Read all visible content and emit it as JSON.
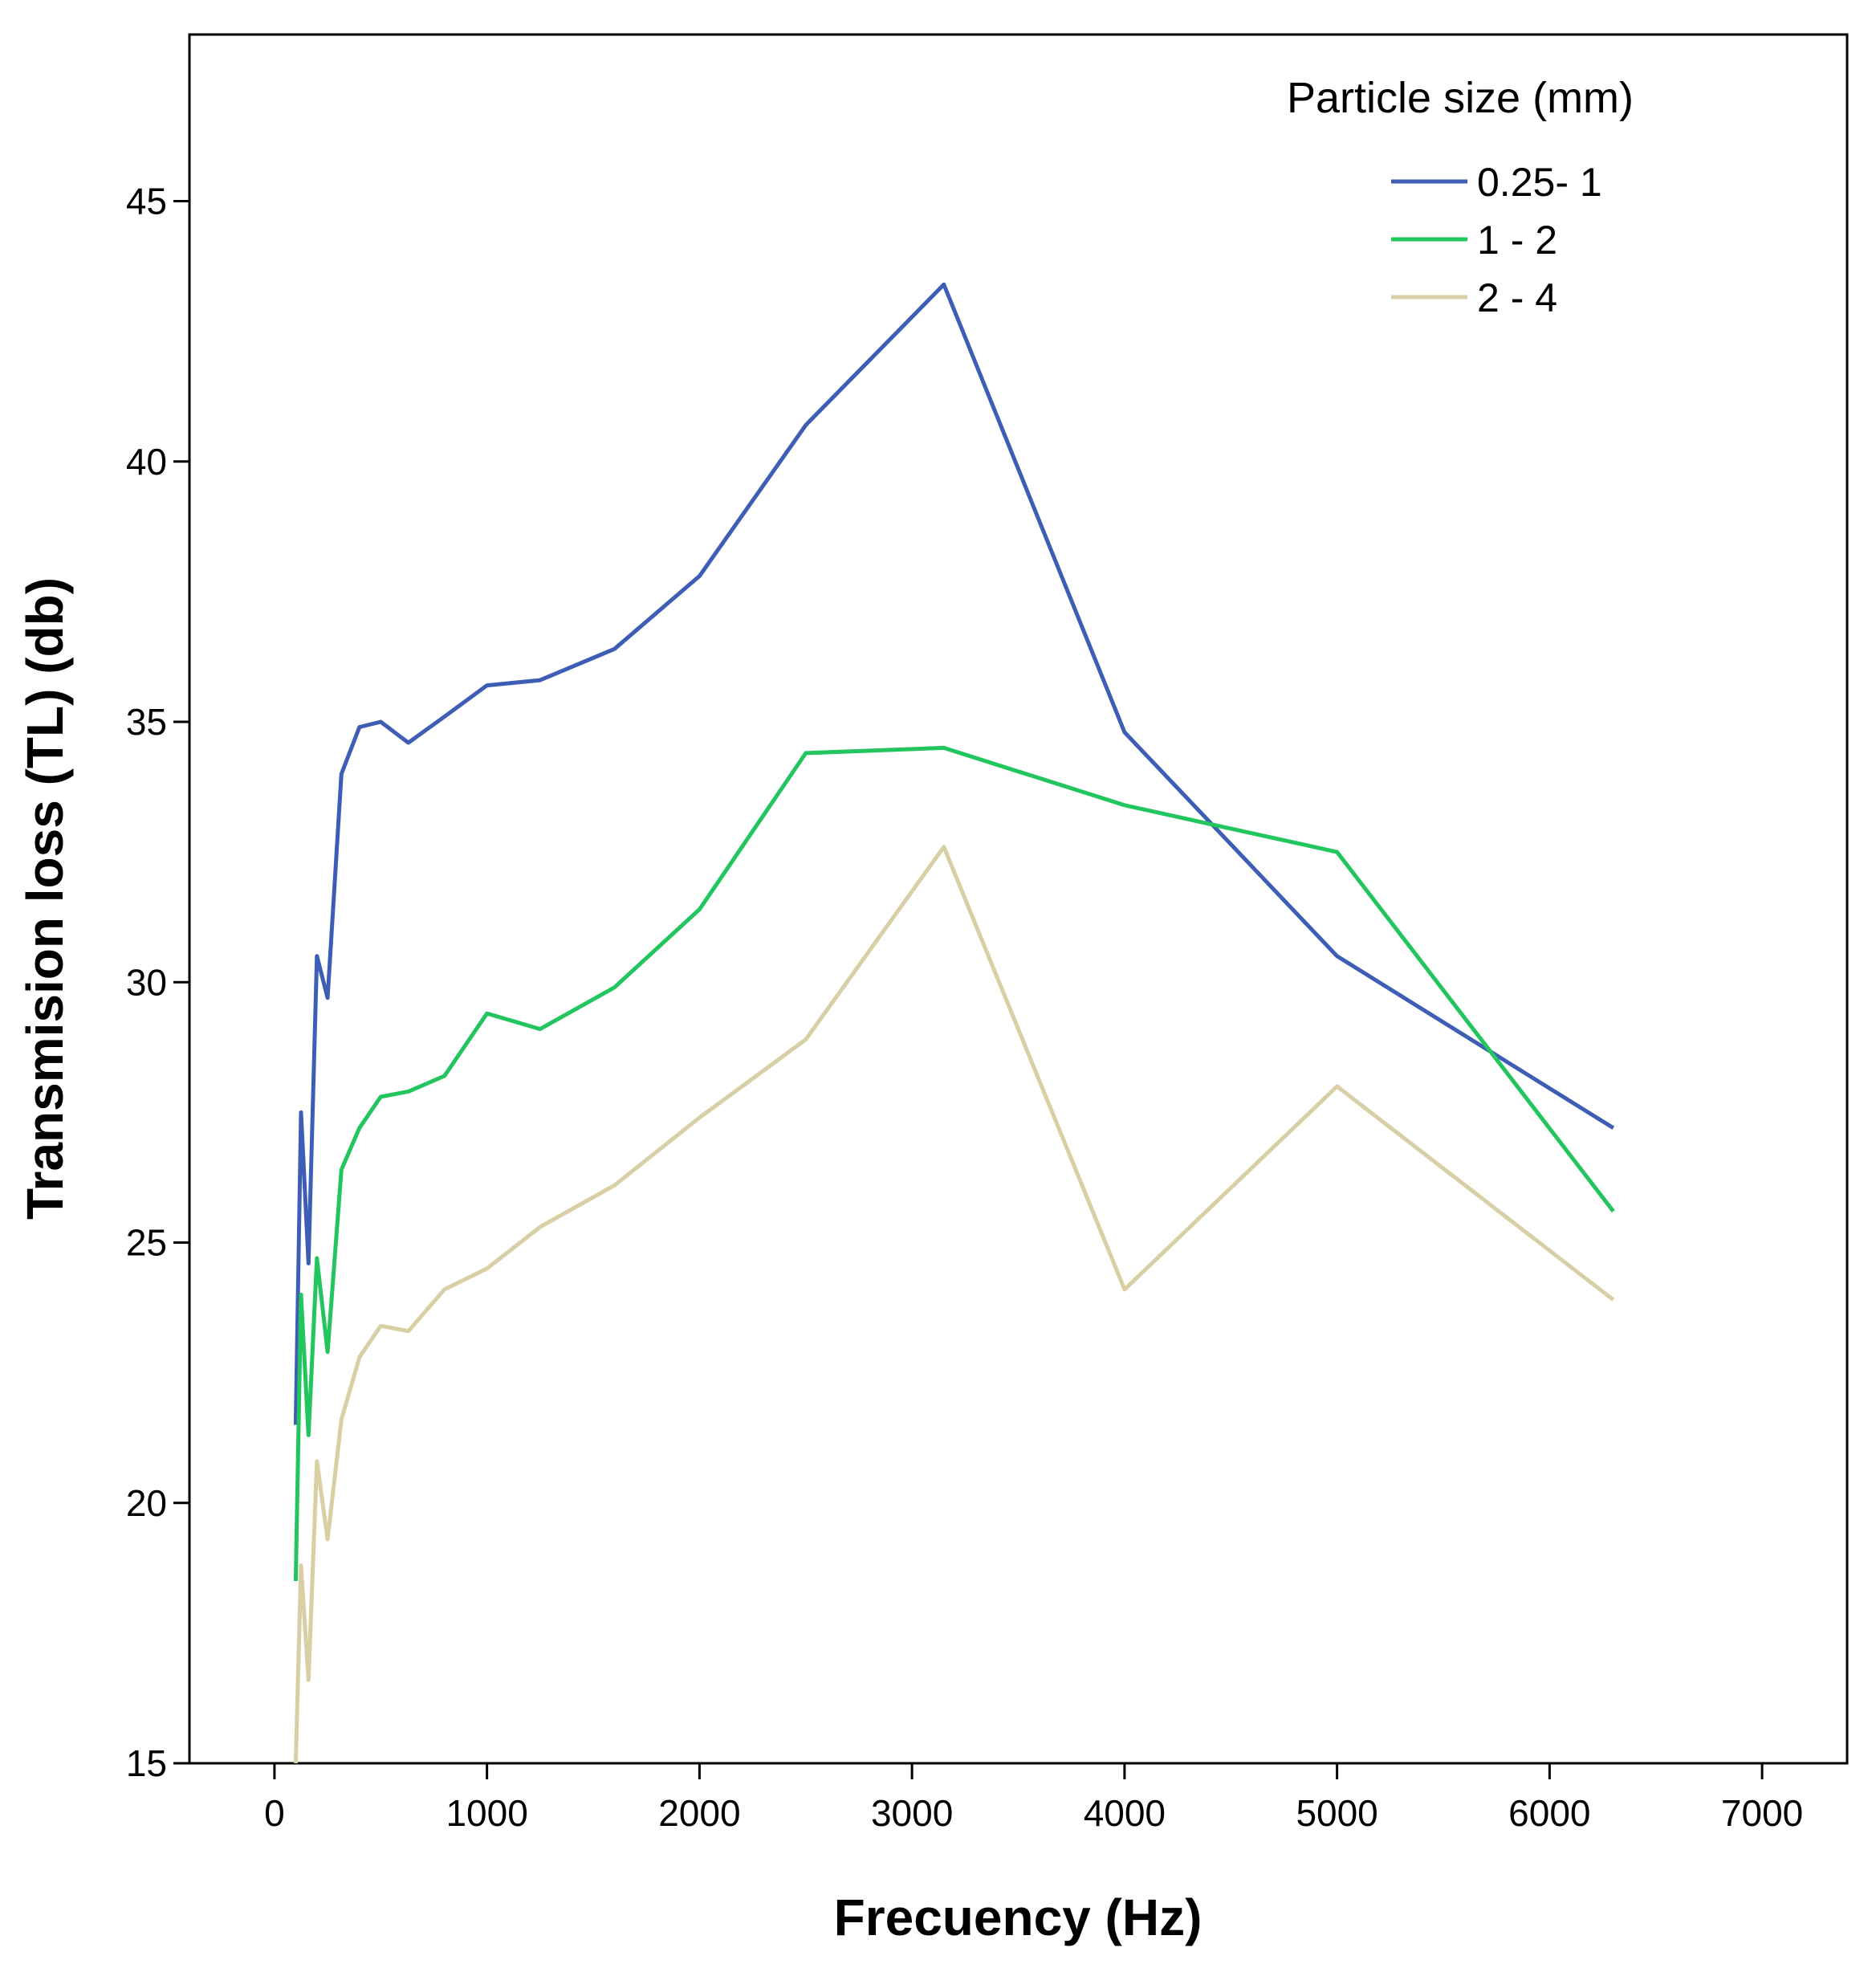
{
  "chart_data": {
    "type": "line",
    "title": "",
    "xlabel": "Frecuency (Hz)",
    "ylabel": "Transmision loss (TL) (db)",
    "xlim": [
      -400,
      7400
    ],
    "ylim": [
      15,
      48.2
    ],
    "xticks": [
      0,
      1000,
      2000,
      3000,
      4000,
      5000,
      6000,
      7000
    ],
    "xtick_labels": [
      "0",
      "1000",
      "2000",
      "3000",
      "4000",
      "5000",
      "6000",
      "7000"
    ],
    "yticks": [
      15,
      20,
      25,
      30,
      35,
      40,
      45
    ],
    "ytick_labels": [
      "15",
      "20",
      "25",
      "30",
      "35",
      "40",
      "45"
    ],
    "grid": false,
    "legend": {
      "title": "Particle size (mm)",
      "position": "top-right"
    },
    "series": [
      {
        "name": "0.25- 1",
        "color": "#3d5eb4",
        "x": [
          100,
          125,
          160,
          200,
          250,
          315,
          400,
          500,
          630,
          800,
          1000,
          1250,
          1600,
          2000,
          2500,
          3150,
          4000,
          5000,
          6300
        ],
        "y": [
          21.5,
          27.5,
          24.6,
          30.5,
          29.7,
          34.0,
          34.9,
          35.0,
          34.6,
          35.1,
          35.7,
          35.8,
          36.4,
          37.8,
          40.7,
          43.4,
          34.8,
          30.5,
          27.2
        ]
      },
      {
        "name": "1 - 2",
        "color": "#22c55e",
        "x": [
          100,
          125,
          160,
          200,
          250,
          315,
          400,
          500,
          630,
          800,
          1000,
          1250,
          1600,
          2000,
          2500,
          3150,
          4000,
          5000,
          6300
        ],
        "y": [
          18.5,
          24.0,
          21.3,
          24.7,
          22.9,
          26.4,
          27.2,
          27.8,
          27.9,
          28.2,
          29.4,
          29.1,
          29.9,
          31.4,
          34.4,
          34.5,
          33.4,
          32.5,
          25.6
        ]
      },
      {
        "name": "2 - 4",
        "color": "#d9cfa5",
        "x": [
          100,
          125,
          160,
          200,
          250,
          315,
          400,
          500,
          630,
          800,
          1000,
          1250,
          1600,
          2000,
          2500,
          3150,
          4000,
          5000,
          6300
        ],
        "y": [
          15.0,
          18.8,
          16.6,
          20.8,
          19.3,
          21.6,
          22.8,
          23.4,
          23.3,
          24.1,
          24.5,
          25.3,
          26.1,
          27.4,
          28.9,
          32.6,
          24.1,
          28.0,
          23.9
        ]
      }
    ]
  }
}
